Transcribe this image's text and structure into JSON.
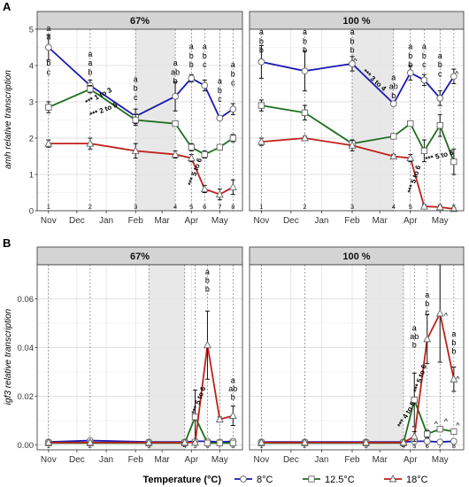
{
  "figure": {
    "legend": {
      "title": "Temperature (°C)",
      "items": [
        {
          "label": "8°C",
          "color": "#1a1ab5",
          "marker": "circle"
        },
        {
          "label": "12.5°C",
          "color": "#1e6e1e",
          "marker": "square"
        },
        {
          "label": "18°C",
          "color": "#c0201a",
          "marker": "triangle"
        }
      ]
    },
    "x_months": [
      "Nov",
      "Dec",
      "Jan",
      "Feb",
      "Mar",
      "Apr",
      "May"
    ],
    "sample_labels": [
      "1",
      "2",
      "3",
      "4",
      "5",
      "6",
      "7",
      "8"
    ]
  },
  "chart_data": [
    {
      "type": "line",
      "panel_letter": "A",
      "ylabel": "amh relative transcription",
      "ylim": [
        0,
        5
      ],
      "yticks": [
        "0",
        "1",
        "2",
        "3",
        "4",
        "5"
      ],
      "facets": [
        {
          "title": "67%",
          "shade": [
            "2025-02-01",
            "2025-03-15"
          ],
          "sample_dates": [
            "2024-11-01",
            "2024-12-15",
            "2025-02-01",
            "2025-03-15",
            "2025-04-01",
            "2025-04-15",
            "2025-05-01",
            "2025-05-15"
          ],
          "series": [
            {
              "name": "8°C",
              "color": "#1a1ab5",
              "marker": "circle",
              "values": [
                4.5,
                3.45,
                2.6,
                3.15,
                3.65,
                3.45,
                2.55,
                2.8
              ],
              "err": [
                0.35,
                0.15,
                0.2,
                0.4,
                0.1,
                0.15,
                0.05,
                0.15
              ]
            },
            {
              "name": "12.5°C",
              "color": "#1e6e1e",
              "marker": "square",
              "values": [
                2.85,
                3.35,
                2.5,
                2.4,
                1.75,
                1.55,
                1.75,
                2.0
              ],
              "err": [
                0.15,
                0.1,
                0.15,
                0.05,
                0.1,
                0.1,
                0.05,
                0.1
              ]
            },
            {
              "name": "18°C",
              "color": "#c0201a",
              "marker": "triangle",
              "values": [
                1.85,
                1.85,
                1.65,
                1.55,
                1.45,
                0.6,
                0.45,
                0.65
              ],
              "err": [
                0.1,
                0.15,
                0.2,
                0.1,
                0.1,
                0.1,
                0.15,
                0.2
              ]
            }
          ],
          "annotations": [
            {
              "text": "a",
              "x": "2024-11-01",
              "y": 4.95
            },
            {
              "text": "a",
              "x": "2024-11-01",
              "y": 4.72
            },
            {
              "text": "b",
              "x": "2024-11-01",
              "y": 4.0
            },
            {
              "text": "c",
              "x": "2024-11-01",
              "y": 3.75
            },
            {
              "text": "a",
              "x": "2024-12-15",
              "y": 4.25
            },
            {
              "text": "a",
              "x": "2024-12-15",
              "y": 4.0
            },
            {
              "text": "b",
              "x": "2024-12-15",
              "y": 3.75
            },
            {
              "text": "a",
              "x": "2025-02-01",
              "y": 3.55
            },
            {
              "text": "b",
              "x": "2025-02-01",
              "y": 3.3
            },
            {
              "text": "c",
              "x": "2025-02-01",
              "y": 3.05
            },
            {
              "text": "a",
              "x": "2025-03-15",
              "y": 4.0
            },
            {
              "text": "ab",
              "x": "2025-03-15",
              "y": 3.75
            },
            {
              "text": "b",
              "x": "2025-03-15",
              "y": 3.5
            },
            {
              "text": "a",
              "x": "2025-04-01",
              "y": 4.45
            },
            {
              "text": "b",
              "x": "2025-04-01",
              "y": 4.2
            },
            {
              "text": "b",
              "x": "2025-04-01",
              "y": 3.95
            },
            {
              "text": "a",
              "x": "2025-04-15",
              "y": 4.45
            },
            {
              "text": "b",
              "x": "2025-04-15",
              "y": 4.2
            },
            {
              "text": "c",
              "x": "2025-04-15",
              "y": 3.95
            },
            {
              "text": "a",
              "x": "2025-05-01",
              "y": 3.5
            },
            {
              "text": "b",
              "x": "2025-05-01",
              "y": 3.25
            },
            {
              "text": "c",
              "x": "2025-05-01",
              "y": 3.0
            },
            {
              "text": "a",
              "x": "2025-05-15",
              "y": 3.95
            },
            {
              "text": "b",
              "x": "2025-05-15",
              "y": 3.7
            },
            {
              "text": "c",
              "x": "2025-05-15",
              "y": 3.45
            },
            {
              "text": "*** 1 to 3",
              "x": "2024-12-25",
              "y": 3.1,
              "angle": -28
            },
            {
              "text": "*** 2 to 5",
              "x": "2024-12-30",
              "y": 2.72,
              "angle": -22
            },
            {
              "text": "*** 5 to 6",
              "x": "2025-04-07",
              "y": 1.05,
              "angle": -70
            }
          ]
        },
        {
          "title": "100 %",
          "shade": [
            "2025-02-01",
            "2025-03-15"
          ],
          "sample_dates": [
            "2024-11-01",
            "2024-12-15",
            "2025-02-01",
            "2025-03-15",
            "2025-04-01",
            "2025-04-15",
            "2025-05-01",
            "2025-05-15"
          ],
          "series": [
            {
              "name": "8°C",
              "color": "#1a1ab5",
              "marker": "circle",
              "values": [
                4.1,
                3.85,
                4.05,
                2.95,
                3.8,
                3.6,
                3.1,
                3.7
              ],
              "err": [
                0.45,
                0.55,
                0.2,
                0.05,
                0.2,
                0.15,
                0.2,
                0.2
              ]
            },
            {
              "name": "12.5°C",
              "color": "#1e6e1e",
              "marker": "square",
              "values": [
                2.9,
                2.7,
                1.85,
                2.05,
                2.4,
                1.65,
                2.35,
                1.35
              ],
              "err": [
                0.15,
                0.2,
                0.1,
                0.05,
                0.05,
                0.3,
                0.3,
                0.35
              ]
            },
            {
              "name": "18°C",
              "color": "#c0201a",
              "marker": "triangle",
              "values": [
                1.9,
                2.0,
                1.8,
                1.5,
                1.45,
                0.12,
                0.1,
                0.05
              ],
              "err": [
                0.1,
                0.05,
                0.15,
                0.05,
                0.1,
                0.05,
                0.05,
                0.03
              ]
            }
          ],
          "annotations": [
            {
              "text": "a",
              "x": "2024-11-01",
              "y": 4.85
            },
            {
              "text": "b",
              "x": "2024-11-01",
              "y": 4.6
            },
            {
              "text": "b",
              "x": "2024-11-01",
              "y": 4.35
            },
            {
              "text": "a",
              "x": "2024-12-15",
              "y": 4.85
            },
            {
              "text": "b",
              "x": "2024-12-15",
              "y": 4.6
            },
            {
              "text": "b",
              "x": "2024-12-15",
              "y": 4.35
            },
            {
              "text": "a",
              "x": "2025-02-01",
              "y": 4.85
            },
            {
              "text": "b",
              "x": "2025-02-01",
              "y": 4.6
            },
            {
              "text": "b",
              "x": "2025-02-01",
              "y": 4.35
            },
            {
              "text": "a",
              "x": "2025-03-15",
              "y": 3.6
            },
            {
              "text": "ab",
              "x": "2025-03-15",
              "y": 3.35
            },
            {
              "text": "b",
              "x": "2025-03-15",
              "y": 3.1
            },
            {
              "text": "a",
              "x": "2025-04-01",
              "y": 4.45
            },
            {
              "text": "b",
              "x": "2025-04-01",
              "y": 4.2
            },
            {
              "text": "b",
              "x": "2025-04-01",
              "y": 3.95
            },
            {
              "text": "a",
              "x": "2025-04-15",
              "y": 4.45
            },
            {
              "text": "b",
              "x": "2025-04-15",
              "y": 4.2
            },
            {
              "text": "c",
              "x": "2025-04-15",
              "y": 3.95
            },
            {
              "text": "a",
              "x": "2025-05-01",
              "y": 4.2
            },
            {
              "text": "b",
              "x": "2025-05-01",
              "y": 3.95
            },
            {
              "text": "c",
              "x": "2025-05-01",
              "y": 3.7
            },
            {
              "text": "^",
              "x": "2025-02-04",
              "y": 4.05
            },
            {
              "text": "^",
              "x": "2025-05-18",
              "y": 3.7
            },
            {
              "text": "*** 3 to 4",
              "x": "2025-02-22",
              "y": 3.55,
              "angle": 42
            },
            {
              "text": "*** 5 to 8",
              "x": "2025-05-01",
              "y": 1.45,
              "angle": -15
            },
            {
              "text": "*** 5 to 6",
              "x": "2025-04-07",
              "y": 0.85,
              "angle": -72
            }
          ]
        }
      ]
    },
    {
      "type": "line",
      "panel_letter": "B",
      "ylabel": "igf3 relative transcription",
      "ylim": [
        -0.002,
        0.074
      ],
      "yticks": [
        "0.00",
        "0.02",
        "0.04",
        "0.06"
      ],
      "facets": [
        {
          "title": "67%",
          "shade": [
            "2025-02-15",
            "2025-03-25"
          ],
          "sample_dates": [
            "2024-11-01",
            "2024-12-15",
            "2025-02-15",
            "2025-03-25",
            "2025-04-05",
            "2025-04-18",
            "2025-05-01",
            "2025-05-15"
          ],
          "series": [
            {
              "name": "8°C",
              "color": "#1a1ab5",
              "marker": "circle",
              "values": [
                0.0012,
                0.0018,
                0.0012,
                0.0012,
                0.0015,
                0.0015,
                0.0012,
                0.0015
              ],
              "err": [
                0.0003,
                0.0003,
                0.0003,
                0.0003,
                0.0003,
                0.0003,
                0.0003,
                0.0003
              ]
            },
            {
              "name": "12.5°C",
              "color": "#1e6e1e",
              "marker": "square",
              "values": [
                0.0008,
                0.0008,
                0.0008,
                0.0008,
                0.0115,
                0.0008,
                0.0008,
                0.0008
              ],
              "err": [
                0.0002,
                0.0002,
                0.0002,
                0.0002,
                0.011,
                0.0002,
                0.0002,
                0.0002
              ]
            },
            {
              "name": "18°C",
              "color": "#c0201a",
              "marker": "triangle",
              "values": [
                0.001,
                0.001,
                0.001,
                0.001,
                0.001,
                0.041,
                0.0105,
                0.012
              ],
              "err": [
                0.0003,
                0.0003,
                0.0003,
                0.0003,
                0.0005,
                0.014,
                0.001,
                0.004
              ]
            }
          ],
          "annotations": [
            {
              "text": "a",
              "x": "2025-04-18",
              "y": 0.07
            },
            {
              "text": "b",
              "x": "2025-04-18",
              "y": 0.0665
            },
            {
              "text": "b",
              "x": "2025-04-18",
              "y": 0.063
            },
            {
              "text": "a",
              "x": "2025-05-15",
              "y": 0.0255
            },
            {
              "text": "ab",
              "x": "2025-05-15",
              "y": 0.022
            },
            {
              "text": "b",
              "x": "2025-05-15",
              "y": 0.0185
            },
            {
              "text": "*** 5 to 6",
              "x": "2025-04-11",
              "y": 0.018,
              "angle": -70
            }
          ]
        },
        {
          "title": "100 %",
          "shade": [
            "2025-02-15",
            "2025-03-25"
          ],
          "sample_dates": [
            "2024-11-01",
            "2024-12-15",
            "2025-02-15",
            "2025-03-25",
            "2025-04-05",
            "2025-04-18",
            "2025-05-01",
            "2025-05-15"
          ],
          "series": [
            {
              "name": "8°C",
              "color": "#1a1ab5",
              "marker": "circle",
              "values": [
                0.0012,
                0.0012,
                0.0012,
                0.0012,
                0.0015,
                0.0015,
                0.0012,
                0.0015
              ],
              "err": [
                0.0003,
                0.0003,
                0.0003,
                0.0003,
                0.0003,
                0.0003,
                0.0003,
                0.0003
              ]
            },
            {
              "name": "12.5°C",
              "color": "#1e6e1e",
              "marker": "square",
              "values": [
                0.0008,
                0.0008,
                0.0008,
                0.0008,
                0.0185,
                0.0045,
                0.0065,
                0.0055
              ],
              "err": [
                0.0002,
                0.0002,
                0.0002,
                0.0002,
                0.011,
                0.0015,
                0.001,
                0.001
              ]
            },
            {
              "name": "18°C",
              "color": "#c0201a",
              "marker": "triangle",
              "values": [
                0.001,
                0.001,
                0.001,
                0.001,
                0.0035,
                0.0435,
                0.054,
                0.027
              ],
              "err": [
                0.0003,
                0.0003,
                0.0003,
                0.0003,
                0.002,
                0.01,
                0.02,
                0.005
              ]
            }
          ],
          "annotations": [
            {
              "text": "a",
              "x": "2025-04-05",
              "y": 0.047
            },
            {
              "text": "ab",
              "x": "2025-04-05",
              "y": 0.0435
            },
            {
              "text": "b",
              "x": "2025-04-05",
              "y": 0.04
            },
            {
              "text": "a",
              "x": "2025-04-18",
              "y": 0.0605
            },
            {
              "text": "b",
              "x": "2025-04-18",
              "y": 0.057
            },
            {
              "text": "c",
              "x": "2025-04-18",
              "y": 0.0535
            },
            {
              "text": "a",
              "x": "2025-05-15",
              "y": 0.0445
            },
            {
              "text": "b",
              "x": "2025-05-15",
              "y": 0.041
            },
            {
              "text": "b",
              "x": "2025-05-15",
              "y": 0.0375
            },
            {
              "text": "^",
              "x": "2025-04-27",
              "y": 0.0075
            },
            {
              "text": "^",
              "x": "2025-05-07",
              "y": 0.0085
            },
            {
              "text": "^",
              "x": "2025-05-19",
              "y": 0.007
            },
            {
              "text": "^",
              "x": "2025-05-07",
              "y": 0.052
            },
            {
              "text": "^",
              "x": "2025-05-19",
              "y": 0.026
            },
            {
              "text": "*** 4 to 5",
              "x": "2025-03-30",
              "y": 0.012,
              "angle": -60
            },
            {
              "text": "*** 5 to 6",
              "x": "2025-04-13",
              "y": 0.027,
              "angle": -72
            }
          ]
        }
      ]
    }
  ]
}
